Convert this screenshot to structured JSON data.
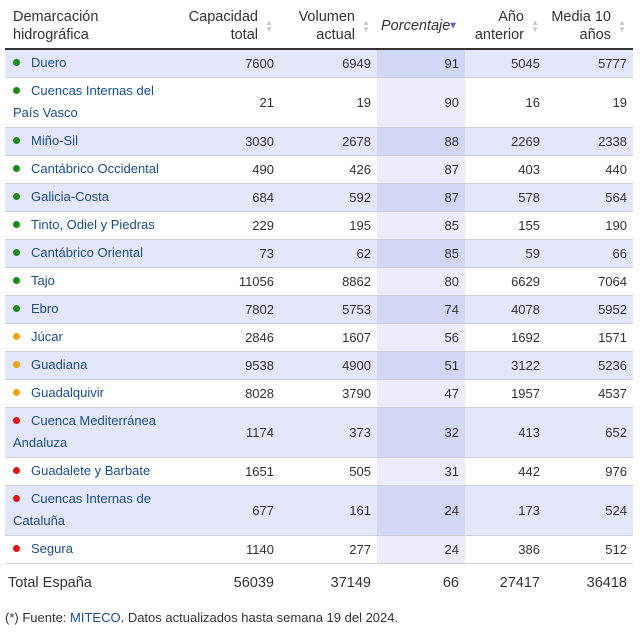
{
  "colors": {
    "green": "#1a8a1a",
    "orange": "#f2a20c",
    "red": "#e01414",
    "accent": "#4a5fc1"
  },
  "headers": {
    "name": [
      "Demarcación",
      "hidrográfica"
    ],
    "capacidad": [
      "Capacidad",
      "total"
    ],
    "volumen": [
      "Volumen",
      "actual"
    ],
    "porcentaje": "Porcentaje",
    "anio": [
      "Año",
      "anterior"
    ],
    "media": [
      "Media 10",
      "años"
    ]
  },
  "rows": [
    {
      "name": "Duero",
      "status": "green",
      "capacidad": "7600",
      "volumen": "6949",
      "porcentaje": "91",
      "anio": "5045",
      "media": "5777"
    },
    {
      "name": "Cuencas Internas del País Vasco",
      "status": "green",
      "capacidad": "21",
      "volumen": "19",
      "porcentaje": "90",
      "anio": "16",
      "media": "19"
    },
    {
      "name": "Miño-Sil",
      "status": "green",
      "capacidad": "3030",
      "volumen": "2678",
      "porcentaje": "88",
      "anio": "2269",
      "media": "2338"
    },
    {
      "name": "Cantábrico Occidental",
      "status": "green",
      "capacidad": "490",
      "volumen": "426",
      "porcentaje": "87",
      "anio": "403",
      "media": "440"
    },
    {
      "name": "Galicia-Costa",
      "status": "green",
      "capacidad": "684",
      "volumen": "592",
      "porcentaje": "87",
      "anio": "578",
      "media": "564"
    },
    {
      "name": "Tinto, Odiel y Piedras",
      "status": "green",
      "capacidad": "229",
      "volumen": "195",
      "porcentaje": "85",
      "anio": "155",
      "media": "190"
    },
    {
      "name": "Cantábrico Oriental",
      "status": "green",
      "capacidad": "73",
      "volumen": "62",
      "porcentaje": "85",
      "anio": "59",
      "media": "66"
    },
    {
      "name": "Tajo",
      "status": "green",
      "capacidad": "11056",
      "volumen": "8862",
      "porcentaje": "80",
      "anio": "6629",
      "media": "7064"
    },
    {
      "name": "Ebro",
      "status": "green",
      "capacidad": "7802",
      "volumen": "5753",
      "porcentaje": "74",
      "anio": "4078",
      "media": "5952"
    },
    {
      "name": "Júcar",
      "status": "orange",
      "capacidad": "2846",
      "volumen": "1607",
      "porcentaje": "56",
      "anio": "1692",
      "media": "1571"
    },
    {
      "name": "Guadiana",
      "status": "orange",
      "capacidad": "9538",
      "volumen": "4900",
      "porcentaje": "51",
      "anio": "3122",
      "media": "5236"
    },
    {
      "name": "Guadalquivir",
      "status": "orange",
      "capacidad": "8028",
      "volumen": "3790",
      "porcentaje": "47",
      "anio": "1957",
      "media": "4537"
    },
    {
      "name": "Cuenca Mediterránea Andaluza",
      "status": "red",
      "capacidad": "1174",
      "volumen": "373",
      "porcentaje": "32",
      "anio": "413",
      "media": "652"
    },
    {
      "name": "Guadalete y Barbate",
      "status": "red",
      "capacidad": "1651",
      "volumen": "505",
      "porcentaje": "31",
      "anio": "442",
      "media": "976"
    },
    {
      "name": "Cuencas Internas de Cataluña",
      "status": "red",
      "capacidad": "677",
      "volumen": "161",
      "porcentaje": "24",
      "anio": "173",
      "media": "524"
    },
    {
      "name": "Segura",
      "status": "red",
      "capacidad": "1140",
      "volumen": "277",
      "porcentaje": "24",
      "anio": "386",
      "media": "512"
    }
  ],
  "total": {
    "label": "Total España",
    "capacidad": "56039",
    "volumen": "37149",
    "porcentaje": "66",
    "anio": "27417",
    "media": "36418"
  },
  "footnote": {
    "prefix": "(*) Fuente: ",
    "link": "MITECO",
    "suffix": ". Datos actualizados hasta semana 19 del 2024."
  }
}
